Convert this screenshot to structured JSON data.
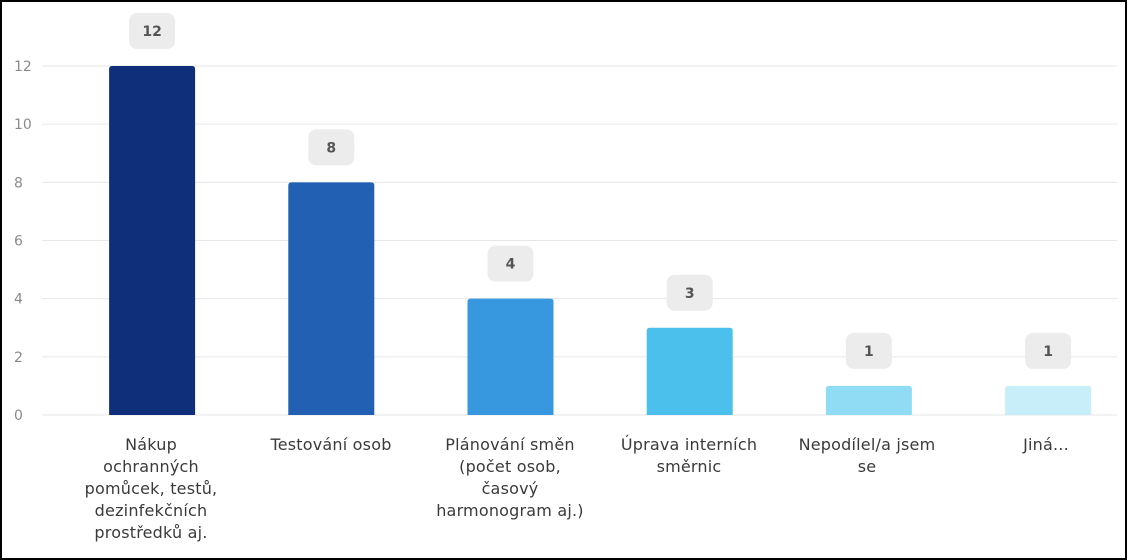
{
  "chart_data": {
    "type": "bar",
    "title": "",
    "xlabel": "",
    "ylabel": "",
    "ylim": [
      0,
      12
    ],
    "yticks": [
      "0",
      "2",
      "4",
      "6",
      "8",
      "10",
      "12"
    ],
    "grid": true,
    "legend": "none",
    "categories": [
      "Nákup ochranných pomůcek, testů, dezinfekčních prostředků aj.",
      "Testování osob",
      "Plánování směn (počet osob, časový harmonogram aj.)",
      "Úprava interních směrnic",
      "Nepodílel/a jsem se",
      "Jiná..."
    ],
    "values": [
      12,
      8,
      4,
      3,
      1,
      1
    ],
    "data_labels": [
      "12",
      "8",
      "4",
      "3",
      "1",
      "1"
    ],
    "colors": [
      "#0f2f7a",
      "#2260b4",
      "#3797df",
      "#4cc0ec",
      "#90dcf4",
      "#c8eefa"
    ],
    "label_badge_color": "#ececec",
    "gridline_color": "#e6e6e6",
    "axis_text_color": "#8a8a8a"
  }
}
